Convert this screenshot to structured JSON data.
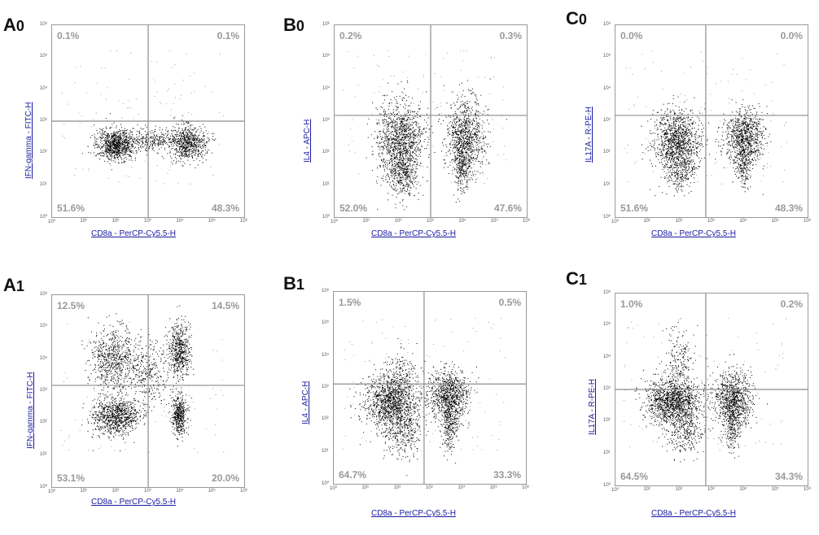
{
  "chart_data": [
    {
      "id": "A0",
      "letter": "A",
      "sub": "0",
      "type": "scatter",
      "xlabel": "CD8a - PerCP-Cy5.5-H",
      "ylabel": "IFN-gamma - FITC-H",
      "quadrants": {
        "ul": "0.1%",
        "ur": "0.1%",
        "ll": "51.6%",
        "lr": "48.3%"
      },
      "x_ticks": [
        "10⁰",
        "10¹",
        "10²",
        "10³",
        "10⁴",
        "10⁵",
        "10⁶"
      ],
      "y_ticks": [
        "10⁶",
        "10⁵",
        "10⁴",
        "10³",
        "10²",
        "10¹",
        "10⁰"
      ]
    },
    {
      "id": "B0",
      "letter": "B",
      "sub": "0",
      "type": "scatter",
      "xlabel": "CD8a - PerCP-Cy5.5-H",
      "ylabel": "IL4 - APC-H",
      "quadrants": {
        "ul": "0.2%",
        "ur": "0.3%",
        "ll": "52.0%",
        "lr": "47.6%"
      },
      "x_ticks": [
        "10⁰",
        "10¹",
        "10²",
        "10³",
        "10⁴",
        "10⁵",
        "10⁶"
      ],
      "y_ticks": [
        "10⁶",
        "10⁵",
        "10⁴",
        "10³",
        "10²",
        "10¹",
        "10⁰"
      ]
    },
    {
      "id": "C0",
      "letter": "C",
      "sub": "0",
      "type": "scatter",
      "xlabel": "CD8a - PerCP-Cy5.5-H",
      "ylabel": "IL17A - R-PE-H",
      "quadrants": {
        "ul": "0.0%",
        "ur": "0.0%",
        "ll": "51.6%",
        "lr": "48.3%"
      },
      "x_ticks": [
        "10⁰",
        "10¹",
        "10²",
        "10³",
        "10⁴",
        "10⁵",
        "10⁶"
      ],
      "y_ticks": [
        "10⁶",
        "10⁵",
        "10⁴",
        "10³",
        "10²",
        "10¹",
        "10⁰"
      ]
    },
    {
      "id": "A1",
      "letter": "A",
      "sub": "1",
      "type": "scatter",
      "xlabel": "CD8a - PerCP-Cy5.5-H",
      "ylabel": "IFN-gamma - FITC-H",
      "quadrants": {
        "ul": "12.5%",
        "ur": "14.5%",
        "ll": "53.1%",
        "lr": "20.0%"
      },
      "x_ticks": [
        "10⁰",
        "10¹",
        "10²",
        "10³",
        "10⁴",
        "10⁵",
        "10⁶"
      ],
      "y_ticks": [
        "10⁶",
        "10⁵",
        "10⁴",
        "10³",
        "10²",
        "10¹",
        "10⁰"
      ]
    },
    {
      "id": "B1",
      "letter": "B",
      "sub": "1",
      "type": "scatter",
      "xlabel": "CD8a - PerCP-Cy5.5-H",
      "ylabel": "IL4 - APC-H",
      "quadrants": {
        "ul": "1.5%",
        "ur": "0.5%",
        "ll": "64.7%",
        "lr": "33.3%"
      },
      "x_ticks": [
        "10⁰",
        "10¹",
        "10²",
        "10³",
        "10⁴",
        "10⁵",
        "10⁶"
      ],
      "y_ticks": [
        "10⁶",
        "10⁵",
        "10⁴",
        "10³",
        "10²",
        "10¹",
        "10⁰"
      ]
    },
    {
      "id": "C1",
      "letter": "C",
      "sub": "1",
      "type": "scatter",
      "xlabel": "CD8a - PerCP-Cy5.5-H",
      "ylabel": "IL17A - R-PE-H",
      "quadrants": {
        "ul": "1.0%",
        "ur": "0.2%",
        "ll": "64.5%",
        "lr": "34.3%"
      },
      "x_ticks": [
        "10⁰",
        "10¹",
        "10²",
        "10³",
        "10⁴",
        "10⁵",
        "10⁶"
      ],
      "y_ticks": [
        "10⁶",
        "10⁵",
        "10⁴",
        "10³",
        "10²",
        "10¹",
        "10⁰"
      ]
    }
  ],
  "colors": {
    "dot": "#000000",
    "gate": "#8c8c8c",
    "label": "#1a1aa0",
    "quadrant": "#999999"
  }
}
